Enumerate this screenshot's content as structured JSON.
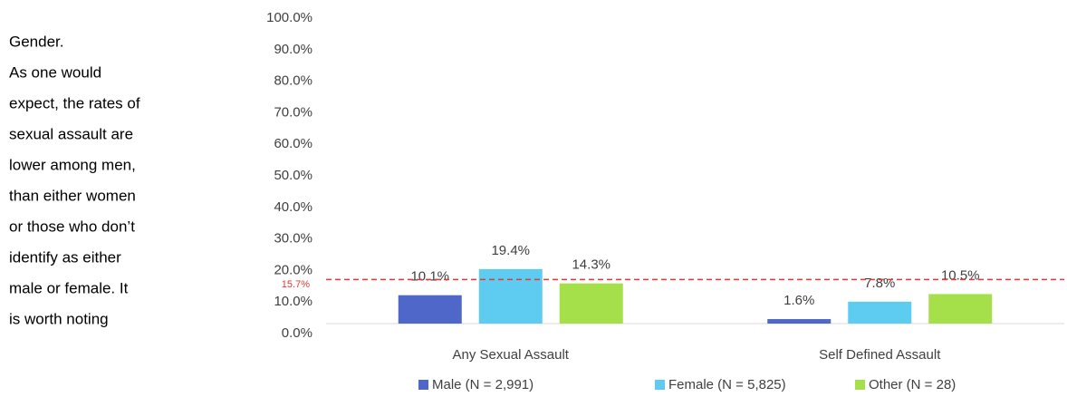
{
  "text": {
    "lines": [
      "Gender.",
      "As one would",
      "expect, the rates of",
      "sexual assault are",
      "lower among men,",
      "than either women",
      "or those who don’t",
      "identify as either",
      "male or female. It",
      "is worth noting"
    ]
  },
  "chart_data": {
    "type": "bar",
    "categories": [
      "Any Sexual Assault",
      "Self Defined Assault"
    ],
    "series": [
      {
        "name": "Male (N = 2,991)",
        "color": "#4e67c8",
        "values": [
          10.1,
          1.6
        ],
        "value_labels": [
          "10.1%",
          "1.6%"
        ]
      },
      {
        "name": "Female (N = 5,825)",
        "color": "#5ecbf0",
        "values": [
          19.4,
          7.8
        ],
        "value_labels": [
          "19.4%",
          "7.8%"
        ]
      },
      {
        "name": "Other (N = 28)",
        "color": "#a5e04a",
        "values": [
          14.3,
          10.5
        ],
        "value_labels": [
          "14.3%",
          "10.5%"
        ]
      }
    ],
    "ylim": [
      0,
      100
    ],
    "yticks": [
      {
        "value": 0,
        "label": "0.0%"
      },
      {
        "value": 10,
        "label": "10.0%"
      },
      {
        "value": 20,
        "label": "20.0%"
      },
      {
        "value": 30,
        "label": "30.0%"
      },
      {
        "value": 40,
        "label": "40.0%"
      },
      {
        "value": 50,
        "label": "50.0%"
      },
      {
        "value": 60,
        "label": "60.0%"
      },
      {
        "value": 70,
        "label": "70.0%"
      },
      {
        "value": 80,
        "label": "80.0%"
      },
      {
        "value": 90,
        "label": "90.0%"
      },
      {
        "value": 100,
        "label": "100.0%"
      }
    ],
    "reference_line": {
      "value": 15.7,
      "label": "15.7%",
      "color": "#e53935"
    },
    "legend": "bottom"
  }
}
